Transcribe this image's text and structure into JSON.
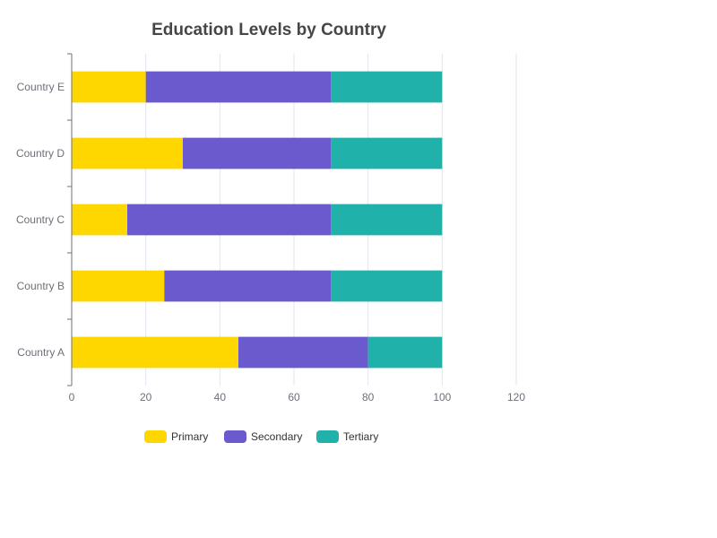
{
  "chart_data": {
    "type": "bar",
    "orientation": "horizontal",
    "stacked": true,
    "title": "Education Levels by Country",
    "categories": [
      "Country A",
      "Country B",
      "Country C",
      "Country D",
      "Country E"
    ],
    "series": [
      {
        "name": "Primary",
        "color": "#ffd700",
        "values": [
          45,
          25,
          15,
          30,
          20
        ]
      },
      {
        "name": "Secondary",
        "color": "#6a5acd",
        "values": [
          35,
          45,
          55,
          40,
          50
        ]
      },
      {
        "name": "Tertiary",
        "color": "#20b2aa",
        "values": [
          20,
          30,
          30,
          30,
          30
        ]
      }
    ],
    "xlim": [
      0,
      120
    ],
    "xticks": [
      0,
      20,
      40,
      60,
      80,
      100,
      120
    ],
    "grid": true,
    "legend_position": "bottom"
  }
}
